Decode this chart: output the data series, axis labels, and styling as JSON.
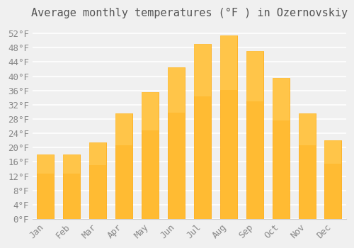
{
  "title": "Average monthly temperatures (°F ) in Ozernovskiy",
  "months": [
    "Jan",
    "Feb",
    "Mar",
    "Apr",
    "May",
    "Jun",
    "Jul",
    "Aug",
    "Sep",
    "Oct",
    "Nov",
    "Dec"
  ],
  "values": [
    18.0,
    18.0,
    21.5,
    29.5,
    35.5,
    42.5,
    49.0,
    51.5,
    47.0,
    39.5,
    29.5,
    22.0
  ],
  "bar_color_top": "#FFBB33",
  "bar_color_bottom": "#FFA500",
  "background_color": "#f0f0f0",
  "grid_color": "#ffffff",
  "ylim": [
    0,
    54
  ],
  "yticks": [
    0,
    4,
    8,
    12,
    16,
    20,
    24,
    28,
    32,
    36,
    40,
    44,
    48,
    52
  ],
  "title_fontsize": 11,
  "tick_fontsize": 9,
  "font_family": "monospace"
}
